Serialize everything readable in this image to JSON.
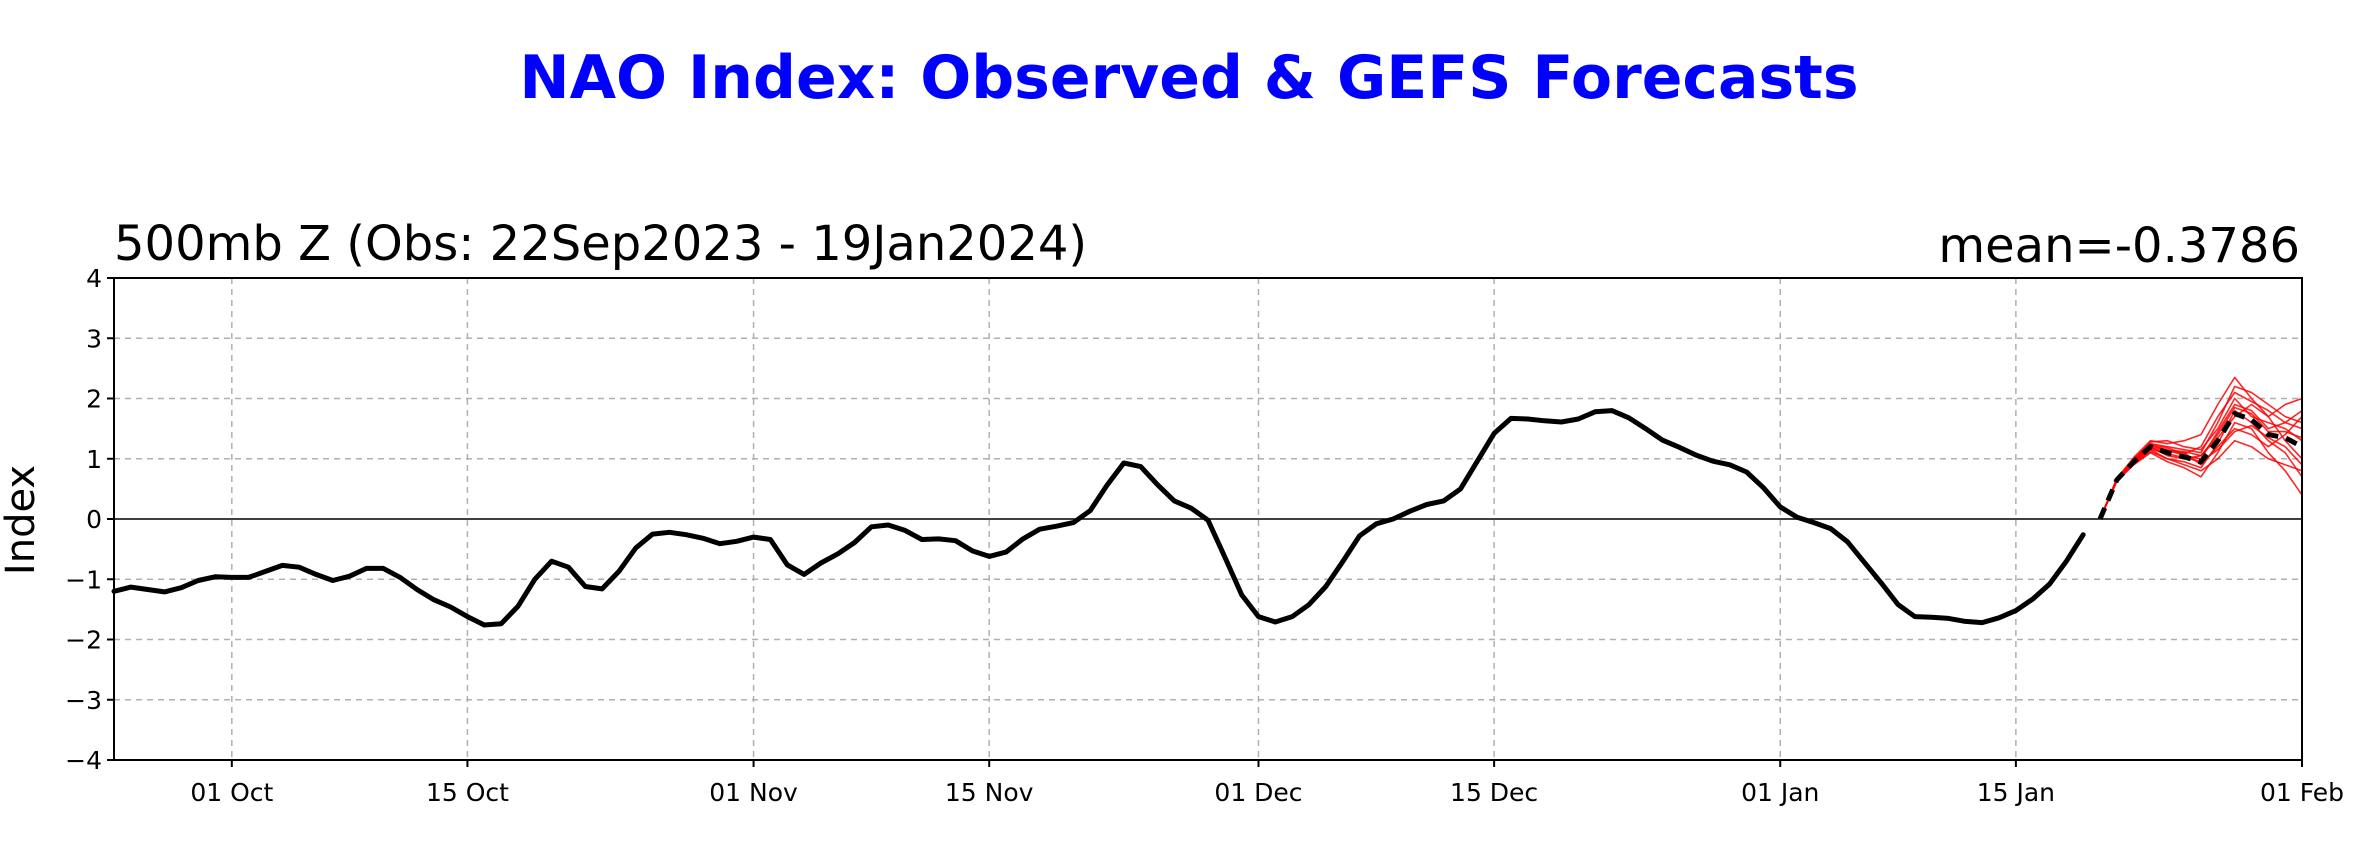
{
  "chart_data": {
    "type": "line",
    "title": "NAO Index: Observed & GEFS Forecasts",
    "subtitle_left": "500mb Z (Obs: 22Sep2023 - 19Jan2024)",
    "subtitle_right": "mean=-0.3786",
    "xlabel": "",
    "ylabel": "Index",
    "ylim": [
      -4,
      4
    ],
    "xlim": [
      "2023-09-24",
      "2024-02-01"
    ],
    "yticks": [
      {
        "value": -4,
        "label": "−4"
      },
      {
        "value": -3,
        "label": "−3"
      },
      {
        "value": -2,
        "label": "−2"
      },
      {
        "value": -1,
        "label": "−1"
      },
      {
        "value": 0,
        "label": "0"
      },
      {
        "value": 1,
        "label": "1"
      },
      {
        "value": 2,
        "label": "2"
      },
      {
        "value": 3,
        "label": "3"
      },
      {
        "value": 4,
        "label": "4"
      }
    ],
    "xticks": [
      {
        "date": "2023-10-01",
        "label": "01 Oct"
      },
      {
        "date": "2023-10-15",
        "label": "15 Oct"
      },
      {
        "date": "2023-11-01",
        "label": "01 Nov"
      },
      {
        "date": "2023-11-15",
        "label": "15 Nov"
      },
      {
        "date": "2023-12-01",
        "label": "01 Dec"
      },
      {
        "date": "2023-12-15",
        "label": "15 Dec"
      },
      {
        "date": "2024-01-01",
        "label": "01 Jan"
      },
      {
        "date": "2024-01-15",
        "label": "15 Jan"
      },
      {
        "date": "2024-02-01",
        "label": "01 Feb"
      }
    ],
    "grid": true,
    "zero_line": true,
    "colors": {
      "observed": "#000000",
      "members": "#ff0000",
      "ensemble_mean": "#000000",
      "title": "#0000ff",
      "grid": "#b0b0b0"
    },
    "observed": {
      "x": [
        "2023-09-24",
        "2023-09-25",
        "2023-09-26",
        "2023-09-27",
        "2023-09-28",
        "2023-09-29",
        "2023-09-30",
        "2023-10-01",
        "2023-10-02",
        "2023-10-03",
        "2023-10-04",
        "2023-10-05",
        "2023-10-06",
        "2023-10-07",
        "2023-10-08",
        "2023-10-09",
        "2023-10-10",
        "2023-10-11",
        "2023-10-12",
        "2023-10-13",
        "2023-10-14",
        "2023-10-15",
        "2023-10-16",
        "2023-10-17",
        "2023-10-18",
        "2023-10-19",
        "2023-10-20",
        "2023-10-21",
        "2023-10-22",
        "2023-10-23",
        "2023-10-24",
        "2023-10-25",
        "2023-10-26",
        "2023-10-27",
        "2023-10-28",
        "2023-10-29",
        "2023-10-30",
        "2023-10-31",
        "2023-11-01",
        "2023-11-02",
        "2023-11-03",
        "2023-11-04",
        "2023-11-05",
        "2023-11-06",
        "2023-11-07",
        "2023-11-08",
        "2023-11-09",
        "2023-11-10",
        "2023-11-11",
        "2023-11-12",
        "2023-11-13",
        "2023-11-14",
        "2023-11-15",
        "2023-11-16",
        "2023-11-17",
        "2023-11-18",
        "2023-11-19",
        "2023-11-20",
        "2023-11-21",
        "2023-11-22",
        "2023-11-23",
        "2023-11-24",
        "2023-11-25",
        "2023-11-26",
        "2023-11-27",
        "2023-11-28",
        "2023-11-29",
        "2023-11-30",
        "2023-12-01",
        "2023-12-02",
        "2023-12-03",
        "2023-12-04",
        "2023-12-05",
        "2023-12-06",
        "2023-12-07",
        "2023-12-08",
        "2023-12-09",
        "2023-12-10",
        "2023-12-11",
        "2023-12-12",
        "2023-12-13",
        "2023-12-14",
        "2023-12-15",
        "2023-12-16",
        "2023-12-17",
        "2023-12-18",
        "2023-12-19",
        "2023-12-20",
        "2023-12-21",
        "2023-12-22",
        "2023-12-23",
        "2023-12-24",
        "2023-12-25",
        "2023-12-26",
        "2023-12-27",
        "2023-12-28",
        "2023-12-29",
        "2023-12-30",
        "2023-12-31",
        "2024-01-01",
        "2024-01-02",
        "2024-01-03",
        "2024-01-04",
        "2024-01-05",
        "2024-01-06",
        "2024-01-07",
        "2024-01-08",
        "2024-01-09",
        "2024-01-10",
        "2024-01-11",
        "2024-01-12",
        "2024-01-13",
        "2024-01-14",
        "2024-01-15",
        "2024-01-16",
        "2024-01-17",
        "2024-01-18",
        "2024-01-19"
      ],
      "y": [
        -1.2,
        -1.13,
        -1.17,
        -1.21,
        -1.14,
        -1.02,
        -0.96,
        -0.97,
        -0.97,
        -0.87,
        -0.77,
        -0.8,
        -0.92,
        -1.02,
        -0.95,
        -0.82,
        -0.82,
        -0.97,
        -1.17,
        -1.34,
        -1.46,
        -1.62,
        -1.76,
        -1.74,
        -1.45,
        -1.0,
        -0.7,
        -0.8,
        -1.12,
        -1.16,
        -0.87,
        -0.48,
        -0.25,
        -0.22,
        -0.26,
        -0.32,
        -0.41,
        -0.37,
        -0.3,
        -0.34,
        -0.76,
        -0.92,
        -0.73,
        -0.58,
        -0.39,
        -0.13,
        -0.1,
        -0.19,
        -0.34,
        -0.33,
        -0.36,
        -0.53,
        -0.62,
        -0.55,
        -0.33,
        -0.17,
        -0.12,
        -0.06,
        0.14,
        0.56,
        0.93,
        0.87,
        0.57,
        0.3,
        0.18,
        -0.02,
        -0.63,
        -1.26,
        -1.62,
        -1.71,
        -1.62,
        -1.42,
        -1.12,
        -0.71,
        -0.28,
        -0.08,
        0.0,
        0.13,
        0.24,
        0.3,
        0.5,
        0.96,
        1.42,
        1.67,
        1.66,
        1.63,
        1.61,
        1.66,
        1.78,
        1.8,
        1.68,
        1.5,
        1.31,
        1.19,
        1.06,
        0.96,
        0.9,
        0.78,
        0.52,
        0.2,
        0.03,
        -0.06,
        -0.16,
        -0.38,
        -0.72,
        -1.06,
        -1.42,
        -1.62,
        -1.63,
        -1.65,
        -1.7,
        -1.72,
        -1.64,
        -1.52,
        -1.33,
        -1.08,
        -0.7,
        -0.26
      ]
    },
    "forecast_mean": {
      "x": [
        "2024-01-20",
        "2024-01-21",
        "2024-01-22",
        "2024-01-23",
        "2024-01-24",
        "2024-01-25",
        "2024-01-26",
        "2024-01-27",
        "2024-01-28",
        "2024-01-29",
        "2024-01-30",
        "2024-01-31",
        "2024-02-01"
      ],
      "y": [
        0.0,
        0.65,
        0.95,
        1.2,
        1.1,
        1.03,
        0.95,
        1.3,
        1.75,
        1.65,
        1.4,
        1.35,
        1.2
      ]
    },
    "members": [
      {
        "x": [
          "2024-01-20",
          "2024-01-21",
          "2024-01-22",
          "2024-01-23",
          "2024-01-24",
          "2024-01-25",
          "2024-01-26",
          "2024-01-27",
          "2024-01-28",
          "2024-01-29",
          "2024-01-30",
          "2024-01-31",
          "2024-02-01"
        ],
        "y": [
          0.0,
          0.66,
          0.98,
          1.25,
          1.2,
          1.15,
          1.1,
          1.6,
          2.2,
          2.1,
          1.9,
          1.7,
          1.6
        ]
      },
      {
        "x": [
          "2024-01-20",
          "2024-01-21",
          "2024-01-22",
          "2024-01-23",
          "2024-01-24",
          "2024-01-25",
          "2024-01-26",
          "2024-01-27",
          "2024-01-28",
          "2024-01-29",
          "2024-01-30",
          "2024-01-31",
          "2024-02-01"
        ],
        "y": [
          0.0,
          0.64,
          0.92,
          1.15,
          1.0,
          0.9,
          0.8,
          1.0,
          1.3,
          1.2,
          1.0,
          0.9,
          0.8
        ]
      },
      {
        "x": [
          "2024-01-20",
          "2024-01-21",
          "2024-01-22",
          "2024-01-23",
          "2024-01-24",
          "2024-01-25",
          "2024-01-26",
          "2024-01-27",
          "2024-01-28",
          "2024-01-29",
          "2024-01-30",
          "2024-01-31",
          "2024-02-01"
        ],
        "y": [
          0.0,
          0.67,
          1.02,
          1.3,
          1.25,
          1.3,
          1.4,
          1.9,
          2.35,
          2.0,
          1.7,
          1.9,
          2.0
        ]
      },
      {
        "x": [
          "2024-01-20",
          "2024-01-21",
          "2024-01-22",
          "2024-01-23",
          "2024-01-24",
          "2024-01-25",
          "2024-01-26",
          "2024-01-27",
          "2024-01-28",
          "2024-01-29",
          "2024-01-30",
          "2024-01-31",
          "2024-02-01"
        ],
        "y": [
          0.0,
          0.63,
          0.9,
          1.1,
          0.95,
          0.85,
          0.7,
          1.1,
          1.6,
          1.5,
          1.1,
          0.8,
          0.4
        ]
      },
      {
        "x": [
          "2024-01-20",
          "2024-01-21",
          "2024-01-22",
          "2024-01-23",
          "2024-01-24",
          "2024-01-25",
          "2024-01-26",
          "2024-01-27",
          "2024-01-28",
          "2024-01-29",
          "2024-01-30",
          "2024-01-31",
          "2024-02-01"
        ],
        "y": [
          0.0,
          0.65,
          0.96,
          1.22,
          1.15,
          1.05,
          1.0,
          1.45,
          1.9,
          1.8,
          1.5,
          1.6,
          1.5
        ]
      },
      {
        "x": [
          "2024-01-20",
          "2024-01-21",
          "2024-01-22",
          "2024-01-23",
          "2024-01-24",
          "2024-01-25",
          "2024-01-26",
          "2024-01-27",
          "2024-01-28",
          "2024-01-29",
          "2024-01-30",
          "2024-01-31",
          "2024-02-01"
        ],
        "y": [
          0.0,
          0.66,
          0.97,
          1.2,
          1.05,
          1.0,
          1.05,
          1.35,
          1.7,
          1.9,
          1.7,
          1.3,
          1.0
        ]
      },
      {
        "x": [
          "2024-01-20",
          "2024-01-21",
          "2024-01-22",
          "2024-01-23",
          "2024-01-24",
          "2024-01-25",
          "2024-01-26",
          "2024-01-27",
          "2024-01-28",
          "2024-01-29",
          "2024-01-30",
          "2024-01-31",
          "2024-02-01"
        ],
        "y": [
          0.0,
          0.64,
          0.93,
          1.18,
          1.12,
          1.1,
          0.9,
          1.2,
          1.5,
          1.4,
          1.2,
          1.4,
          1.7
        ]
      },
      {
        "x": [
          "2024-01-20",
          "2024-01-21",
          "2024-01-22",
          "2024-01-23",
          "2024-01-24",
          "2024-01-25",
          "2024-01-26",
          "2024-01-27",
          "2024-01-28",
          "2024-01-29",
          "2024-01-30",
          "2024-01-31",
          "2024-02-01"
        ],
        "y": [
          0.0,
          0.65,
          0.99,
          1.28,
          1.3,
          1.2,
          1.15,
          1.5,
          2.0,
          1.7,
          1.6,
          1.5,
          1.3
        ]
      },
      {
        "x": [
          "2024-01-20",
          "2024-01-21",
          "2024-01-22",
          "2024-01-23",
          "2024-01-24",
          "2024-01-25",
          "2024-01-26",
          "2024-01-27",
          "2024-01-28",
          "2024-01-29",
          "2024-01-30",
          "2024-01-31",
          "2024-02-01"
        ],
        "y": [
          0.0,
          0.63,
          0.91,
          1.12,
          1.0,
          0.95,
          0.85,
          1.25,
          1.8,
          1.6,
          1.3,
          1.1,
          0.7
        ]
      },
      {
        "x": [
          "2024-01-20",
          "2024-01-21",
          "2024-01-22",
          "2024-01-23",
          "2024-01-24",
          "2024-01-25",
          "2024-01-26",
          "2024-01-27",
          "2024-01-28",
          "2024-01-29",
          "2024-01-30",
          "2024-01-31",
          "2024-02-01"
        ],
        "y": [
          0.0,
          0.67,
          1.0,
          1.24,
          1.18,
          1.08,
          1.2,
          1.7,
          2.1,
          1.95,
          1.8,
          1.6,
          1.8
        ]
      },
      {
        "x": [
          "2024-01-20",
          "2024-01-21",
          "2024-01-22",
          "2024-01-23",
          "2024-01-24",
          "2024-01-25",
          "2024-01-26",
          "2024-01-27",
          "2024-01-28",
          "2024-01-29",
          "2024-01-30",
          "2024-01-31",
          "2024-02-01"
        ],
        "y": [
          0.0,
          0.64,
          0.94,
          1.16,
          1.08,
          1.02,
          0.95,
          1.15,
          1.45,
          1.55,
          1.35,
          1.2,
          0.9
        ]
      },
      {
        "x": [
          "2024-01-20",
          "2024-01-21",
          "2024-01-22",
          "2024-01-23",
          "2024-01-24",
          "2024-01-25",
          "2024-01-26",
          "2024-01-27",
          "2024-01-28",
          "2024-01-29",
          "2024-01-30",
          "2024-01-31",
          "2024-02-01"
        ],
        "y": [
          0.0,
          0.66,
          0.95,
          1.21,
          1.14,
          1.12,
          1.05,
          1.4,
          1.85,
          1.75,
          1.45,
          1.45,
          1.35
        ]
      }
    ]
  }
}
